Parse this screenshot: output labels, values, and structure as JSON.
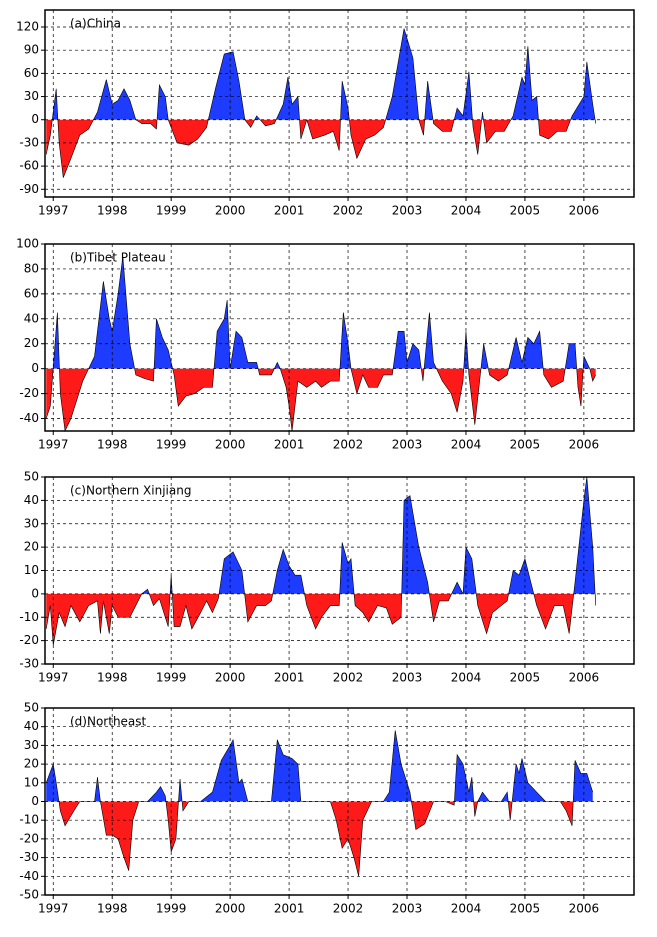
{
  "chart_data": [
    {
      "type": "area",
      "title": "(a)China",
      "positive_color": "#1e3cff",
      "negative_color": "#ff1a1a",
      "grid": true,
      "xlim": [
        1996.86,
        2006.85
      ],
      "ylim": [
        -100,
        142
      ],
      "xticks": [
        1997,
        1998,
        1999,
        2000,
        2001,
        2002,
        2003,
        2004,
        2005,
        2006
      ],
      "yticks": [
        -90,
        -60,
        -30,
        0,
        30,
        60,
        90,
        120
      ],
      "x": [
        1996.88,
        1996.95,
        1997.05,
        1997.1,
        1997.17,
        1997.3,
        1997.45,
        1997.6,
        1997.75,
        1997.9,
        1998.0,
        1998.1,
        1998.2,
        1998.3,
        1998.4,
        1998.5,
        1998.65,
        1998.75,
        1998.8,
        1998.9,
        1998.95,
        1999.1,
        1999.3,
        1999.45,
        1999.6,
        1999.75,
        1999.9,
        2000.05,
        2000.15,
        2000.25,
        2000.35,
        2000.45,
        2000.6,
        2000.75,
        2000.9,
        2000.98,
        2001.05,
        2001.15,
        2001.2,
        2001.3,
        2001.4,
        2001.6,
        2001.75,
        2001.85,
        2001.9,
        2002.0,
        2002.05,
        2002.15,
        2002.3,
        2002.45,
        2002.6,
        2002.75,
        2002.95,
        2003.1,
        2003.2,
        2003.28,
        2003.35,
        2003.45,
        2003.6,
        2003.75,
        2003.85,
        2003.95,
        2004.05,
        2004.12,
        2004.2,
        2004.28,
        2004.35,
        2004.5,
        2004.65,
        2004.8,
        2004.95,
        2005.0,
        2005.05,
        2005.12,
        2005.2,
        2005.25,
        2005.4,
        2005.55,
        2005.7,
        2005.8,
        2006.0,
        2006.05,
        2006.15,
        2006.2
      ],
      "values": [
        -45,
        -20,
        40,
        -30,
        -75,
        -50,
        -20,
        -12,
        10,
        52,
        20,
        25,
        40,
        25,
        0,
        -5,
        -5,
        -12,
        45,
        30,
        0,
        -30,
        -33,
        -25,
        -10,
        40,
        85,
        88,
        50,
        0,
        -10,
        5,
        -8,
        -5,
        20,
        55,
        20,
        30,
        -25,
        0,
        -25,
        -20,
        -15,
        -40,
        50,
        15,
        -20,
        -50,
        -25,
        -20,
        -10,
        30,
        118,
        80,
        0,
        -20,
        50,
        -5,
        -15,
        -15,
        15,
        5,
        62,
        -10,
        -45,
        10,
        -30,
        -15,
        -15,
        5,
        55,
        45,
        95,
        25,
        30,
        -20,
        -25,
        -15,
        -15,
        5,
        30,
        75,
        20,
        -5
      ]
    },
    {
      "type": "area",
      "title": "(b)Tibet Plateau",
      "positive_color": "#1e3cff",
      "negative_color": "#ff1a1a",
      "grid": true,
      "xlim": [
        1996.86,
        2006.85
      ],
      "ylim": [
        -50,
        100
      ],
      "xticks": [
        1997,
        1998,
        1999,
        2000,
        2001,
        2002,
        2003,
        2004,
        2005,
        2006
      ],
      "yticks": [
        -40,
        -20,
        0,
        20,
        40,
        60,
        80,
        100
      ],
      "x": [
        1996.88,
        1996.95,
        1997.07,
        1997.12,
        1997.2,
        1997.3,
        1997.5,
        1997.7,
        1997.85,
        1997.95,
        1998.0,
        1998.1,
        1998.18,
        1998.3,
        1998.4,
        1998.55,
        1998.7,
        1998.75,
        1998.85,
        1998.95,
        1999.05,
        1999.12,
        1999.25,
        1999.4,
        1999.55,
        1999.7,
        1999.78,
        1999.9,
        1999.95,
        2000.0,
        2000.1,
        2000.2,
        2000.3,
        2000.45,
        2000.5,
        2000.7,
        2000.8,
        2000.85,
        2000.95,
        2001.0,
        2001.05,
        2001.15,
        2001.3,
        2001.45,
        2001.55,
        2001.7,
        2001.85,
        2001.92,
        2002.0,
        2002.05,
        2002.15,
        2002.25,
        2002.35,
        2002.5,
        2002.6,
        2002.75,
        2002.85,
        2002.95,
        2003.0,
        2003.1,
        2003.2,
        2003.27,
        2003.38,
        2003.45,
        2003.6,
        2003.75,
        2003.85,
        2003.95,
        2004.0,
        2004.05,
        2004.15,
        2004.22,
        2004.3,
        2004.4,
        2004.55,
        2004.7,
        2004.85,
        2004.95,
        2005.05,
        2005.15,
        2005.25,
        2005.32,
        2005.45,
        2005.65,
        2005.75,
        2005.85,
        2005.9,
        2005.95,
        2006.0,
        2006.1,
        2006.15,
        2006.2
      ],
      "values": [
        -40,
        -30,
        45,
        -20,
        -50,
        -40,
        -10,
        10,
        70,
        40,
        30,
        60,
        90,
        20,
        -5,
        -8,
        -10,
        40,
        25,
        15,
        -5,
        -30,
        -22,
        -20,
        -15,
        -15,
        30,
        40,
        55,
        0,
        30,
        25,
        5,
        5,
        -5,
        -5,
        5,
        0,
        -15,
        -30,
        -50,
        -10,
        -15,
        -10,
        -15,
        -10,
        -10,
        45,
        20,
        0,
        -20,
        -5,
        -15,
        -15,
        -5,
        -5,
        30,
        30,
        5,
        20,
        15,
        -10,
        45,
        5,
        -10,
        -20,
        -35,
        -10,
        30,
        -5,
        -45,
        -15,
        20,
        -5,
        -10,
        -5,
        25,
        5,
        25,
        20,
        30,
        -5,
        -15,
        -10,
        20,
        20,
        -15,
        -30,
        10,
        0,
        -10,
        -5
      ]
    },
    {
      "type": "area",
      "title": "(c)Northern Xinjiang",
      "positive_color": "#1e3cff",
      "negative_color": "#ff1a1a",
      "grid": true,
      "xlim": [
        1996.86,
        2006.85
      ],
      "ylim": [
        -30,
        50
      ],
      "xticks": [
        1997,
        1998,
        1999,
        2000,
        2001,
        2002,
        2003,
        2004,
        2005,
        2006
      ],
      "yticks": [
        -30,
        -20,
        -10,
        0,
        10,
        20,
        30,
        40,
        50
      ],
      "x": [
        1996.88,
        1996.95,
        1997.0,
        1997.1,
        1997.2,
        1997.3,
        1997.45,
        1997.6,
        1997.75,
        1997.8,
        1997.85,
        1997.95,
        1998.0,
        1998.1,
        1998.3,
        1998.4,
        1998.5,
        1998.6,
        1998.7,
        1998.8,
        1998.95,
        1999.0,
        1999.05,
        1999.15,
        1999.25,
        1999.35,
        1999.5,
        1999.6,
        1999.7,
        1999.8,
        1999.9,
        2000.05,
        2000.2,
        2000.3,
        2000.45,
        2000.6,
        2000.7,
        2000.8,
        2000.9,
        2001.0,
        2001.1,
        2001.2,
        2001.3,
        2001.45,
        2001.55,
        2001.7,
        2001.85,
        2001.9,
        2002.0,
        2002.05,
        2002.12,
        2002.25,
        2002.35,
        2002.5,
        2002.65,
        2002.75,
        2002.9,
        2002.95,
        2003.05,
        2003.2,
        2003.35,
        2003.45,
        2003.55,
        2003.7,
        2003.85,
        2003.95,
        2004.0,
        2004.1,
        2004.2,
        2004.35,
        2004.45,
        2004.6,
        2004.7,
        2004.8,
        2004.9,
        2005.0,
        2005.1,
        2005.2,
        2005.35,
        2005.5,
        2005.65,
        2005.75,
        2005.85,
        2006.0,
        2006.05,
        2006.15,
        2006.2
      ],
      "values": [
        -15,
        -5,
        -22,
        -8,
        -14,
        -5,
        -12,
        -5,
        -3,
        -17,
        -3,
        -17,
        -5,
        -10,
        -10,
        -5,
        0,
        2,
        -5,
        -2,
        -14,
        8,
        -14,
        -14,
        -5,
        -15,
        -8,
        -3,
        -8,
        -2,
        15,
        18,
        10,
        -12,
        -5,
        -5,
        -3,
        10,
        19,
        12,
        8,
        8,
        -5,
        -15,
        -10,
        -5,
        -5,
        22,
        13,
        15,
        -5,
        -8,
        -12,
        -5,
        -6,
        -13,
        -10,
        40,
        42,
        20,
        5,
        -12,
        -3,
        -3,
        5,
        0,
        20,
        15,
        -5,
        -17,
        -8,
        -5,
        -3,
        10,
        8,
        15,
        5,
        -5,
        -15,
        -5,
        -5,
        -17,
        5,
        40,
        50,
        20,
        -5
      ]
    },
    {
      "type": "area",
      "title": "(d)Northeast",
      "positive_color": "#1e3cff",
      "negative_color": "#ff1a1a",
      "grid": true,
      "xlim": [
        1996.86,
        2006.85
      ],
      "ylim": [
        -50,
        50
      ],
      "xticks": [
        1997,
        1998,
        1999,
        2000,
        2001,
        2002,
        2003,
        2004,
        2005,
        2006
      ],
      "yticks": [
        -50,
        -40,
        -30,
        -20,
        -10,
        0,
        10,
        20,
        30,
        40,
        50
      ],
      "x": [
        1996.88,
        1997.0,
        1997.05,
        1997.12,
        1997.2,
        1997.35,
        1997.45,
        1997.6,
        1997.7,
        1997.75,
        1997.8,
        1997.9,
        1998.0,
        1998.1,
        1998.2,
        1998.28,
        1998.35,
        1998.45,
        1998.6,
        1998.75,
        1998.82,
        1998.9,
        1998.95,
        1999.0,
        1999.08,
        1999.15,
        1999.2,
        1999.3,
        1999.5,
        1999.7,
        1999.85,
        2000.0,
        2000.05,
        2000.15,
        2000.2,
        2000.3,
        2000.5,
        2000.7,
        2000.8,
        2000.9,
        2001.05,
        2001.15,
        2001.2,
        2001.5,
        2001.7,
        2001.8,
        2001.9,
        2002.0,
        2002.1,
        2002.18,
        2002.25,
        2002.4,
        2002.6,
        2002.7,
        2002.8,
        2002.9,
        2003.05,
        2003.15,
        2003.3,
        2003.45,
        2003.65,
        2003.8,
        2003.85,
        2003.95,
        2004.05,
        2004.1,
        2004.15,
        2004.2,
        2004.28,
        2004.4,
        2004.6,
        2004.7,
        2004.75,
        2004.85,
        2004.9,
        2004.95,
        2005.05,
        2005.2,
        2005.35,
        2005.6,
        2005.7,
        2005.8,
        2005.85,
        2005.95,
        2006.05,
        2006.15
      ],
      "values": [
        10,
        20,
        10,
        -5,
        -13,
        -5,
        0,
        0,
        0,
        13,
        0,
        -18,
        -18,
        -20,
        -30,
        -37,
        -10,
        0,
        0,
        5,
        8,
        3,
        -10,
        -27,
        -20,
        12,
        -5,
        0,
        0,
        5,
        22,
        30,
        33,
        10,
        12,
        0,
        0,
        0,
        33,
        25,
        23,
        20,
        0,
        0,
        0,
        -10,
        -25,
        -20,
        -30,
        -40,
        -10,
        0,
        0,
        5,
        38,
        20,
        5,
        -15,
        -12,
        0,
        0,
        -2,
        25,
        20,
        5,
        13,
        -8,
        0,
        5,
        0,
        0,
        5,
        -10,
        20,
        15,
        23,
        10,
        5,
        0,
        0,
        -5,
        -13,
        22,
        15,
        15,
        5
      ]
    }
  ]
}
